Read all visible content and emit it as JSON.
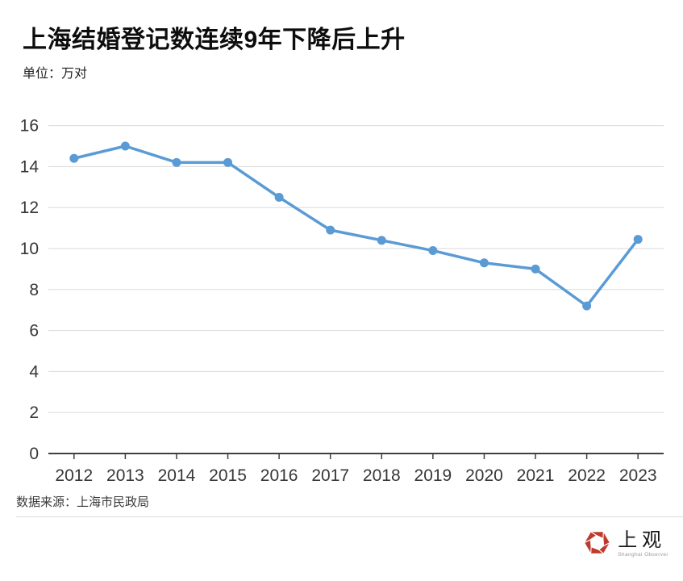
{
  "header": {
    "title": "上海结婚登记数连续9年下降后上升",
    "unit_label": "单位：万对"
  },
  "chart_data": {
    "type": "line",
    "title": "上海结婚登记数连续9年下降后上升",
    "unit": "万对",
    "categories": [
      "2012",
      "2013",
      "2014",
      "2015",
      "2016",
      "2017",
      "2018",
      "2019",
      "2020",
      "2021",
      "2022",
      "2023"
    ],
    "values": [
      14.4,
      15.0,
      14.2,
      14.2,
      12.5,
      10.9,
      10.4,
      9.9,
      9.3,
      9.0,
      7.2,
      10.45
    ],
    "ylim": [
      0,
      16
    ],
    "ytick_step": 2,
    "grid": true,
    "legend": false,
    "line_color": "#5b9bd5",
    "gridline_color": "#dadada",
    "axis_color": "#3f3f3f",
    "tick_label_color": "#373737"
  },
  "footer": {
    "source": "数据来源：上海市民政局"
  },
  "logo": {
    "name": "上观",
    "subtitle": "Shanghai Observer",
    "icon": "aperture-icon",
    "color": "#bf3a2e"
  }
}
